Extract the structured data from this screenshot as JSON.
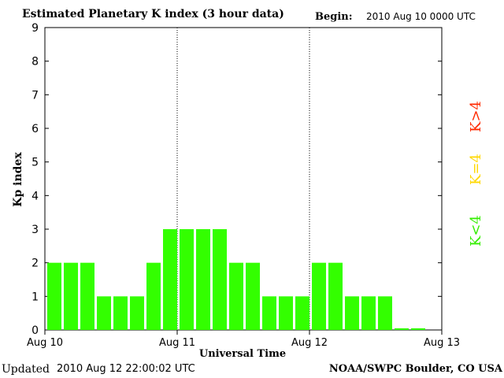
{
  "header": {
    "title": "Estimated Planetary K index (3 hour data)",
    "begin_label": "Begin:",
    "begin_value": "2010 Aug 10 0000 UTC"
  },
  "footer": {
    "updated_label": "Updated",
    "updated_value": "2010 Aug 12 22:00:02 UTC",
    "credit": "NOAA/SWPC Boulder, CO USA"
  },
  "legend": [
    {
      "label": "K>4",
      "color": "#ff2a00"
    },
    {
      "label": "K=4",
      "color": "#ffd800"
    },
    {
      "label": "K<4",
      "color": "#33ee00"
    }
  ],
  "chart_data": {
    "type": "bar",
    "title": "Estimated Planetary K index (3 hour data)",
    "xlabel": "Universal Time",
    "ylabel": "Kp index",
    "ylim": [
      0,
      9
    ],
    "yticks": [
      0,
      1,
      2,
      3,
      4,
      5,
      6,
      7,
      8,
      9
    ],
    "x_ticks": [
      "Aug 10",
      "Aug 11",
      "Aug 12",
      "Aug 13"
    ],
    "day_dividers": [
      "Aug 11",
      "Aug 12"
    ],
    "bar_color": "#33ff00",
    "values": [
      2,
      2,
      2,
      1,
      1,
      1,
      2,
      3,
      3,
      3,
      3,
      2,
      2,
      1,
      1,
      1,
      2,
      2,
      1,
      1,
      1,
      0.05,
      0.05
    ]
  }
}
